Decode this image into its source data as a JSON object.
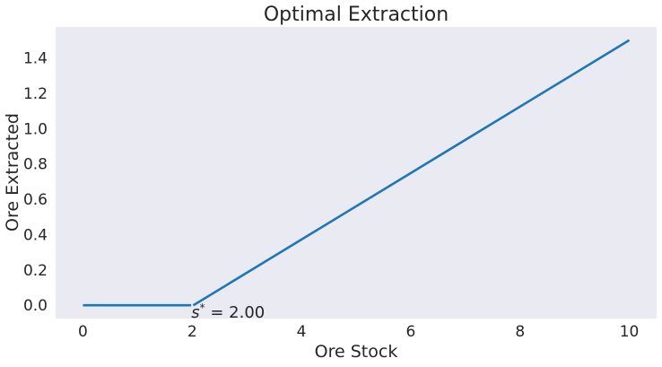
{
  "chart_data": {
    "type": "line",
    "title": "Optimal Extraction",
    "xlabel": "Ore Stock",
    "ylabel": "Ore Extracted",
    "xlim": [
      -0.5,
      10.5
    ],
    "ylim": [
      -0.075,
      1.575
    ],
    "xticks": [
      0,
      2,
      4,
      6,
      8,
      10
    ],
    "yticks": [
      0.0,
      0.2,
      0.4,
      0.6,
      0.8,
      1.0,
      1.2,
      1.4
    ],
    "grid": false,
    "background": "#eaeaf2",
    "series": [
      {
        "color": "#1f77b4",
        "segments": [
          {
            "x": [
              0,
              1.98
            ],
            "y": [
              0.0,
              0.0
            ]
          },
          {
            "x": [
              2.02,
              10
            ],
            "y": [
              0.0,
              1.5
            ]
          }
        ]
      }
    ],
    "annotation": {
      "symbol": "s",
      "superscript": "*",
      "text": " = 2.00",
      "x": 2.0,
      "y": -0.075
    }
  }
}
